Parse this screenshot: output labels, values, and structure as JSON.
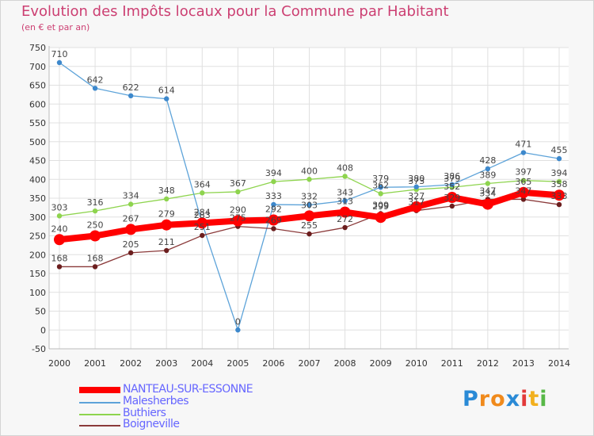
{
  "header": {
    "title": "Evolution des Impôts locaux pour la Commune par Habitant",
    "subtitle": "(en € et par an)"
  },
  "colors": {
    "title": "#cc3f72",
    "legend_text": "#6666ff",
    "grid": "#e0e0e0",
    "tick_text": "#333333",
    "label_text": "#444444"
  },
  "logo": {
    "letters": [
      "P",
      "r",
      "o",
      "x",
      "i",
      "t",
      "i"
    ],
    "colors": [
      "#2a8ad6",
      "#f08a1c",
      "#f08a1c",
      "#2a8ad6",
      "#e23a3a",
      "#f2b01e",
      "#58b847"
    ]
  },
  "chart_data": {
    "type": "line",
    "title": "Evolution des Impôts locaux pour la Commune par Habitant",
    "subtitle": "(en € et par an)",
    "xlabel": "",
    "ylabel": "",
    "x": [
      "2000",
      "2001",
      "2002",
      "2003",
      "2004",
      "2005",
      "2006",
      "2007",
      "2008",
      "2009",
      "2010",
      "2011",
      "2012",
      "2013",
      "2014"
    ],
    "ylim": [
      -50,
      750
    ],
    "yticks": [
      -50,
      0,
      50,
      100,
      150,
      200,
      250,
      300,
      350,
      400,
      450,
      500,
      550,
      600,
      650,
      700,
      750
    ],
    "grid": true,
    "legend_position": "bottom-left",
    "series": [
      {
        "name": "Buthiers",
        "color": "#8ed44e",
        "marker": "#8ed44e",
        "values": [
          303,
          316,
          334,
          348,
          364,
          367,
          394,
          400,
          408,
          362,
          373,
          379,
          389,
          397,
          394
        ],
        "labels": [
          "303",
          "316",
          "334",
          "348",
          "364",
          "367",
          "394",
          "400",
          "408",
          "362",
          "373",
          "379",
          "389",
          "397",
          "394"
        ]
      },
      {
        "name": "Malesherbes",
        "color": "#5da3d9",
        "marker": "#3d88cc",
        "values": [
          710,
          642,
          622,
          614,
          283,
          0,
          333,
          332,
          343,
          379,
          380,
          386,
          428,
          471,
          455
        ],
        "labels": [
          "710",
          "642",
          "622",
          "614",
          "283",
          "0",
          "333",
          "332",
          "343",
          "379",
          "380",
          "386",
          "428",
          "471",
          "455"
        ]
      },
      {
        "name": "Boigneville",
        "color": "#8b3a3a",
        "marker": "#6b1e1e",
        "values": [
          168,
          168,
          205,
          211,
          251,
          275,
          269,
          255,
          272,
          309,
          317,
          329,
          347,
          347,
          333
        ],
        "labels": [
          "168",
          "168",
          "205",
          "211",
          "251",
          "275",
          "269",
          "255",
          "272",
          "309",
          "317",
          "329",
          "347",
          "347",
          "333"
        ]
      },
      {
        "name": "NANTEAU-SUR-ESSONNE",
        "color": "#ff0000",
        "marker": "#ff0000",
        "values": [
          240,
          250,
          267,
          279,
          284,
          290,
          292,
          303,
          313,
          299,
          327,
          352,
          334,
          365,
          358
        ],
        "labels": [
          "240",
          "250",
          "267",
          "279",
          "284",
          "290",
          "292",
          "303",
          "313",
          "299",
          "327",
          "352",
          "334",
          "365",
          "358"
        ]
      }
    ]
  },
  "legend": [
    {
      "label": "NANTEAU-SUR-ESSONNE",
      "color": "#ff0000"
    },
    {
      "label": "Malesherbes",
      "color": "#5da3d9"
    },
    {
      "label": "Buthiers",
      "color": "#8ed44e"
    },
    {
      "label": "Boigneville",
      "color": "#8b3a3a"
    }
  ]
}
